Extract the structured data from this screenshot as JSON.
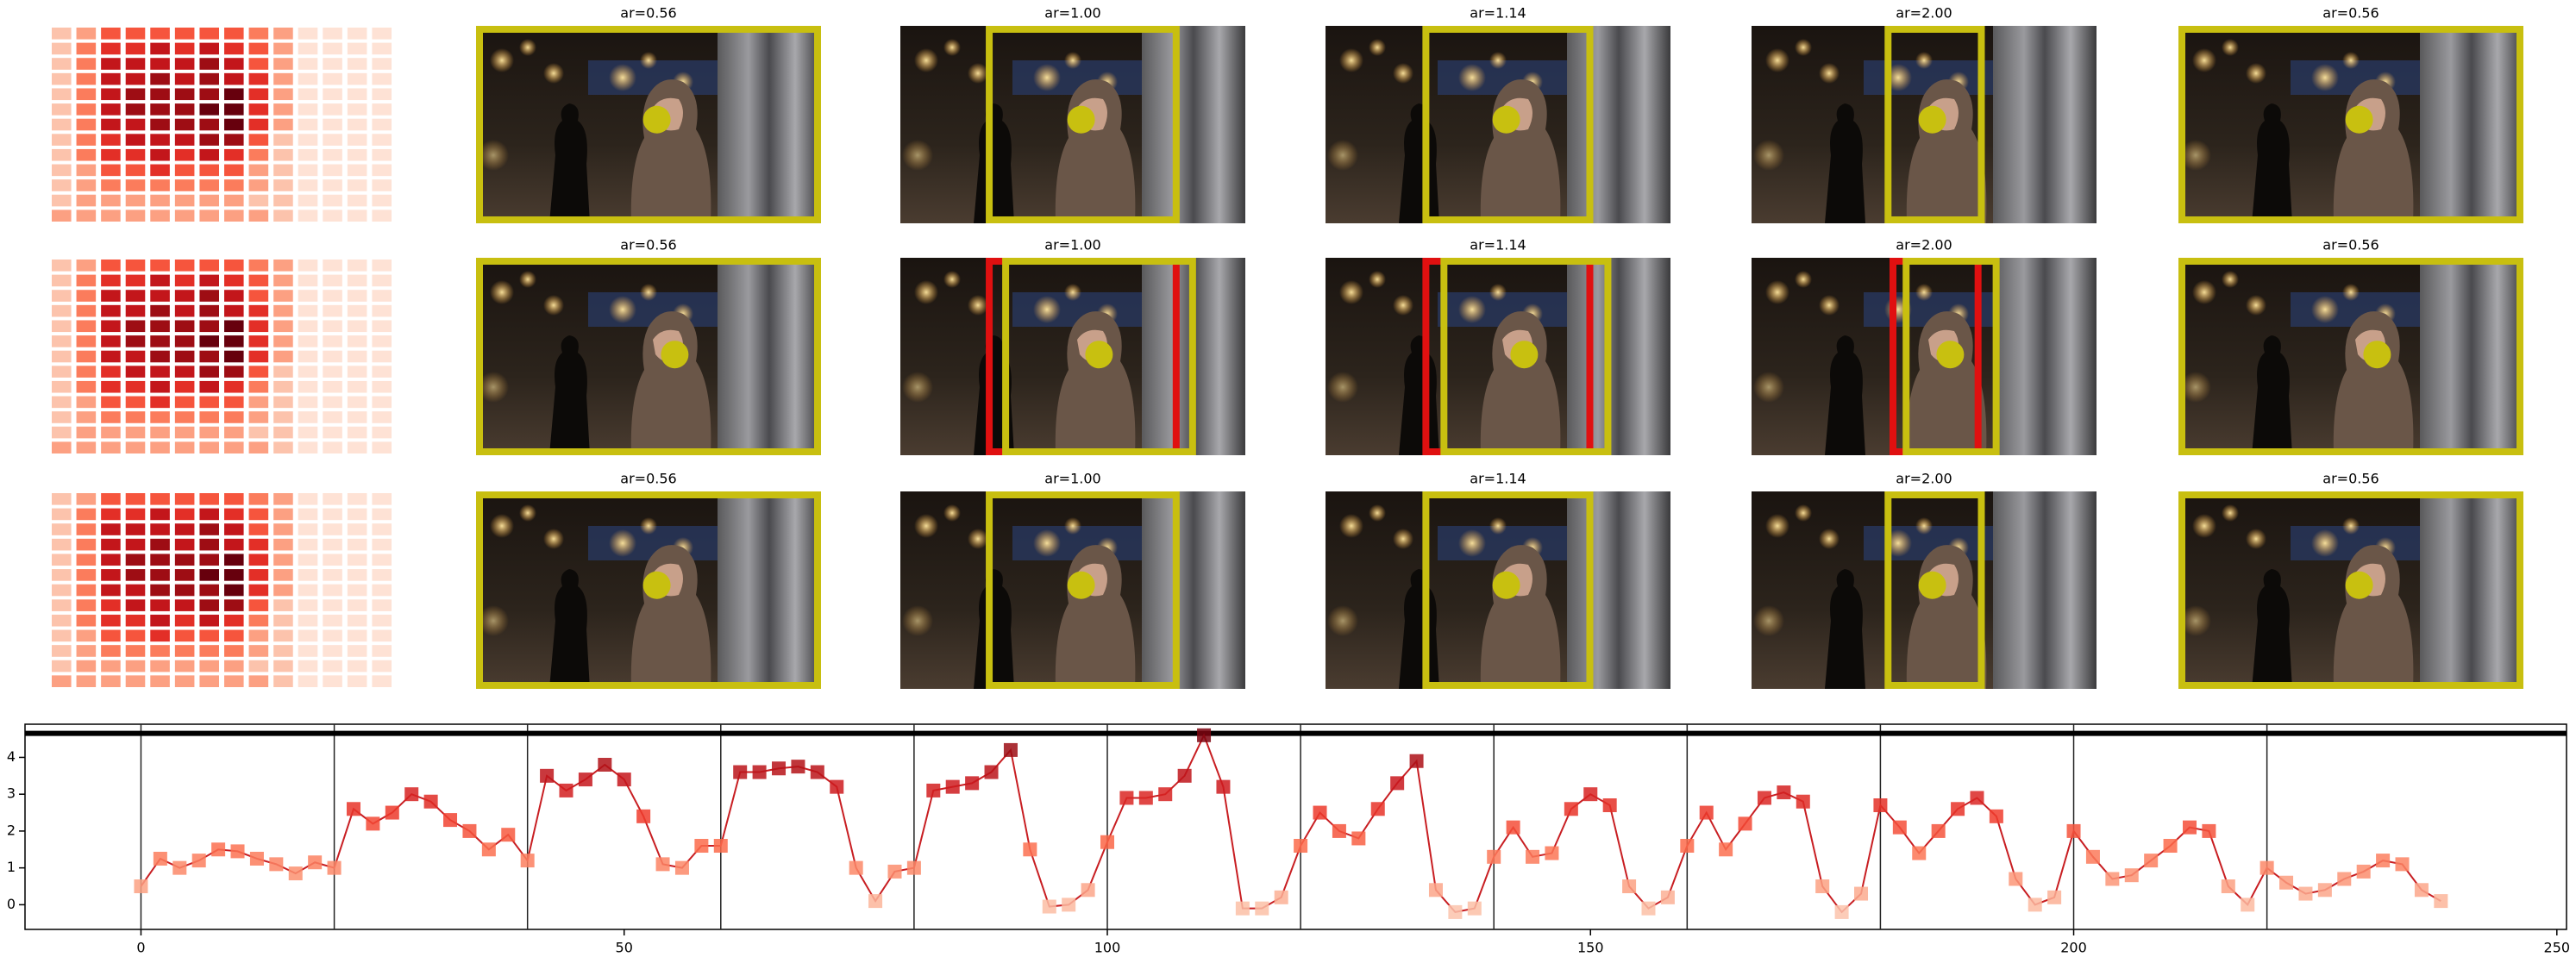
{
  "panels": {
    "titles": [
      [
        "ar=0.56",
        "ar=1.00",
        "ar=1.14",
        "ar=2.00",
        "ar=0.56"
      ],
      [
        "ar=0.56",
        "ar=1.00",
        "ar=1.14",
        "ar=2.00",
        "ar=0.56"
      ],
      [
        "ar=0.56",
        "ar=1.00",
        "ar=1.14",
        "ar=2.00",
        "ar=0.56"
      ]
    ],
    "heatmap": [
      [
        2,
        3,
        5,
        5,
        5,
        5,
        5,
        5,
        4,
        3,
        1,
        1,
        1,
        1
      ],
      [
        2,
        4,
        6,
        6,
        7,
        6,
        7,
        6,
        5,
        3,
        1,
        1,
        1,
        1
      ],
      [
        2,
        4,
        7,
        7,
        7,
        7,
        8,
        7,
        5,
        3,
        1,
        1,
        1,
        1
      ],
      [
        2,
        4,
        7,
        7,
        8,
        7,
        8,
        7,
        6,
        3,
        1,
        1,
        1,
        1
      ],
      [
        2,
        4,
        7,
        8,
        8,
        8,
        8,
        9,
        6,
        3,
        1,
        1,
        1,
        1
      ],
      [
        2,
        4,
        7,
        8,
        8,
        8,
        9,
        9,
        6,
        3,
        1,
        1,
        1,
        1
      ],
      [
        2,
        4,
        7,
        7,
        8,
        8,
        8,
        9,
        6,
        3,
        1,
        1,
        1,
        1
      ],
      [
        2,
        4,
        6,
        7,
        7,
        7,
        8,
        8,
        5,
        2,
        1,
        1,
        1,
        1
      ],
      [
        2,
        4,
        6,
        6,
        7,
        6,
        7,
        6,
        4,
        2,
        1,
        1,
        1,
        1
      ],
      [
        2,
        3,
        5,
        5,
        6,
        5,
        5,
        5,
        3,
        2,
        1,
        1,
        1,
        1
      ],
      [
        2,
        3,
        4,
        4,
        4,
        4,
        4,
        4,
        3,
        2,
        1,
        1,
        1,
        1
      ],
      [
        2,
        3,
        3,
        3,
        3,
        3,
        3,
        3,
        2,
        2,
        1,
        1,
        1,
        1
      ],
      [
        3,
        3,
        3,
        3,
        3,
        3,
        3,
        3,
        3,
        2,
        1,
        1,
        1,
        1
      ]
    ],
    "heatmap_range": [
      0,
      9
    ],
    "colormap": [
      "#fff5f0",
      "#fee0d2",
      "#fcbba1",
      "#fc9272",
      "#fb6a4a",
      "#ef3b2c",
      "#cb181d",
      "#a50f15",
      "#67000d"
    ]
  },
  "chart_data": {
    "type": "line",
    "x": [
      0,
      2,
      4,
      6,
      8,
      10,
      12,
      14,
      16,
      18,
      20,
      22,
      24,
      26,
      28,
      30,
      32,
      34,
      36,
      38,
      40,
      42,
      44,
      46,
      48,
      50,
      52,
      54,
      56,
      58,
      60,
      62,
      64,
      66,
      68,
      70,
      72,
      74,
      76,
      78,
      80,
      82,
      84,
      86,
      88,
      90,
      92,
      94,
      96,
      98,
      100,
      102,
      104,
      106,
      108,
      110,
      112,
      114,
      116,
      118,
      120,
      122,
      124,
      126,
      128,
      130,
      132,
      134,
      136,
      138,
      140,
      142,
      144,
      146,
      148,
      150,
      152,
      154,
      156,
      158,
      160,
      162,
      164,
      166,
      168,
      170,
      172,
      174,
      176,
      178,
      180,
      182,
      184,
      186,
      188,
      190,
      192,
      194,
      196,
      198,
      200,
      202,
      204,
      206,
      208,
      210,
      212,
      214,
      216,
      218,
      220,
      222,
      224,
      226,
      228,
      230,
      232,
      234,
      236,
      238
    ],
    "series": [
      {
        "color": "#c81e22",
        "values": [
          0.5,
          1.25,
          1.0,
          1.2,
          1.5,
          1.45,
          1.25,
          1.1,
          0.85,
          1.15,
          1.0,
          2.6,
          2.2,
          2.5,
          3.0,
          2.8,
          2.3,
          2.0,
          1.5,
          1.9,
          1.2,
          3.5,
          3.1,
          3.4,
          3.8,
          3.4,
          2.4,
          1.1,
          1.0,
          1.6,
          1.6,
          3.6,
          3.6,
          3.7,
          3.75,
          3.6,
          3.2,
          1.0,
          0.1,
          0.9,
          1.0,
          3.1,
          3.2,
          3.3,
          3.6,
          4.2,
          1.5,
          -0.05,
          0.0,
          0.4,
          1.7,
          2.9,
          2.9,
          3.0,
          3.5,
          4.6,
          3.2,
          -0.1,
          -0.1,
          0.2,
          1.6,
          2.5,
          2.0,
          1.8,
          2.6,
          3.3,
          3.9,
          0.4,
          -0.2,
          -0.1,
          1.3,
          2.1,
          1.3,
          1.4,
          2.6,
          3.0,
          2.7,
          0.5,
          -0.1,
          0.2,
          1.6,
          2.5,
          1.5,
          2.2,
          2.9,
          3.05,
          2.8,
          0.5,
          -0.2,
          0.3,
          2.7,
          2.1,
          1.4,
          2.0,
          2.6,
          2.9,
          2.4,
          0.7,
          0.0,
          0.2,
          2.0,
          1.3,
          0.7,
          0.8,
          1.2,
          1.6,
          2.1,
          2.0,
          0.5,
          0.0,
          1.0,
          0.6,
          0.3,
          0.4,
          0.7,
          0.9,
          1.2,
          1.1,
          0.4,
          0.1
        ]
      }
    ],
    "xlim": [
      -12,
      251
    ],
    "ylim": [
      -0.67,
      4.9
    ],
    "xticks": [
      0,
      50,
      100,
      150,
      200,
      250
    ],
    "yticks": [
      0,
      1,
      2,
      3,
      4
    ],
    "vlines": [
      0,
      20,
      40,
      60,
      80,
      100,
      120,
      140,
      160,
      180,
      200,
      220
    ],
    "hline": 4.65
  }
}
